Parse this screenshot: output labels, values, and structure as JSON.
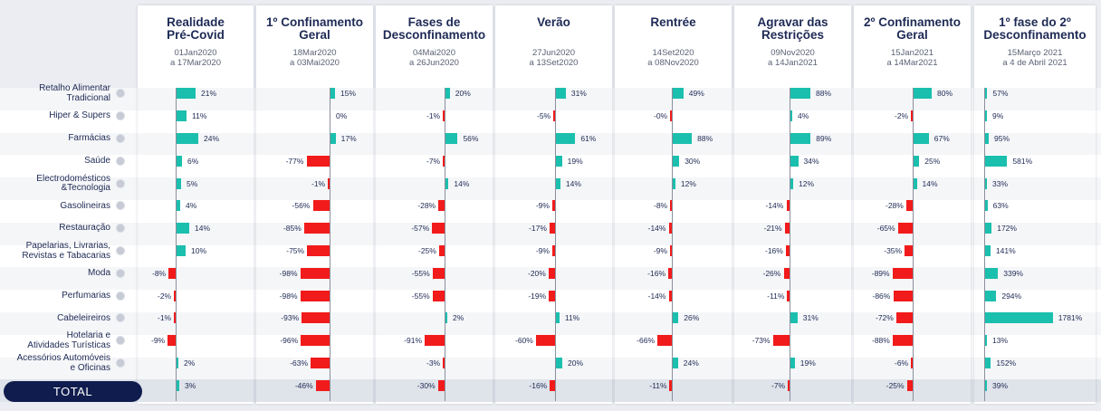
{
  "total_label": "TOTAL",
  "colors": {
    "positive": "#1bbfae",
    "negative": "#f21b1b",
    "navy": "#1e2a55"
  },
  "chart_data": {
    "type": "bar",
    "orientation": "horizontal",
    "categories": [
      "Retalho Alimentar\nTradicional",
      "Hiper & Supers",
      "Farmácias",
      "Saúde",
      "Electrodomésticos\n&Tecnologia",
      "Gasolineiras",
      "Restauração",
      "Papelarias, Livrarias,\nRevistas e Tabacarias",
      "Moda",
      "Perfumarias",
      "Cabeleireiros",
      "Hotelaria e\nAtividades Turísticas",
      "Acessórios Automóveis\ne Oficinas",
      "TOTAL"
    ],
    "series": [
      {
        "name": "Realidade\nPré-Covid",
        "dates": "01Jan2020\na 17Mar2020",
        "values": [
          21,
          11,
          24,
          6,
          5,
          4,
          14,
          10,
          -8,
          -2,
          -1,
          -9,
          2,
          3
        ],
        "labels": [
          "21%",
          "11%",
          "24%",
          "6%",
          "5%",
          "4%",
          "14%",
          "10%",
          "-8%",
          "-2%",
          "-1%",
          "-9%",
          "2%",
          "3%"
        ]
      },
      {
        "name": "1º Confinamento\nGeral",
        "dates": "18Mar2020\na 03Mai2020",
        "values": [
          15,
          0,
          17,
          -77,
          -1,
          -56,
          -85,
          -75,
          -98,
          -98,
          -93,
          -96,
          -63,
          -46
        ],
        "labels": [
          "15%",
          "0%",
          "17%",
          "-77%",
          "-1%",
          "-56%",
          "-85%",
          "-75%",
          "-98%",
          "-98%",
          "-93%",
          "-96%",
          "-63%",
          "-46%"
        ]
      },
      {
        "name": "Fases de\nDesconfinamento",
        "dates": "04Mai2020\na 26Jun2020",
        "values": [
          20,
          -1,
          56,
          -7,
          14,
          -28,
          -57,
          -25,
          -55,
          -55,
          2,
          -91,
          -3,
          -30
        ],
        "labels": [
          "20%",
          "-1%",
          "56%",
          "-7%",
          "14%",
          "-28%",
          "-57%",
          "-25%",
          "-55%",
          "-55%",
          "2%",
          "-91%",
          "-3%",
          "-30%"
        ]
      },
      {
        "name": "Verão",
        "dates": "27Jun2020\na 13Set2020",
        "values": [
          31,
          -5,
          61,
          19,
          14,
          -9,
          -17,
          -9,
          -20,
          -19,
          11,
          -60,
          20,
          -16
        ],
        "labels": [
          "31%",
          "-5%",
          "61%",
          "19%",
          "14%",
          "-9%",
          "-17%",
          "-9%",
          "-20%",
          "-19%",
          "11%",
          "-60%",
          "20%",
          "-16%"
        ]
      },
      {
        "name": "Rentrée",
        "dates": "14Set2020\na 08Nov2020",
        "values": [
          49,
          -0.3,
          88,
          30,
          12,
          -8,
          -14,
          -9,
          -16,
          -14,
          26,
          -66,
          24,
          -11
        ],
        "labels": [
          "49%",
          "-0%",
          "88%",
          "30%",
          "12%",
          "-8%",
          "-14%",
          "-9%",
          "-16%",
          "-14%",
          "26%",
          "-66%",
          "24%",
          "-11%"
        ]
      },
      {
        "name": "Agravar das\nRestrições",
        "dates": "09Nov2020\na 14Jan2021",
        "values": [
          88,
          4,
          89,
          34,
          12,
          -14,
          -21,
          -16,
          -26,
          -11,
          31,
          -73,
          19,
          -7
        ],
        "labels": [
          "88%",
          "4%",
          "89%",
          "34%",
          "12%",
          "-14%",
          "-21%",
          "-16%",
          "-26%",
          "-11%",
          "31%",
          "-73%",
          "19%",
          "-7%"
        ]
      },
      {
        "name": "2º Confinamento\nGeral",
        "dates": "15Jan2021\na 14Mar2021",
        "values": [
          80,
          -2,
          67,
          25,
          14,
          -28,
          -65,
          -35,
          -89,
          -86,
          -72,
          -88,
          -6,
          -25
        ],
        "labels": [
          "80%",
          "-2%",
          "67%",
          "25%",
          "14%",
          "-28%",
          "-65%",
          "-35%",
          "-89%",
          "-86%",
          "-72%",
          "-88%",
          "-6%",
          "-25%"
        ]
      },
      {
        "name": "1º fase do 2º\nDesconfinamento",
        "dates": "15Março 2021\na 4 de Abril 2021",
        "values": [
          57,
          9,
          95,
          581,
          33,
          63,
          172,
          141,
          339,
          294,
          1781,
          13,
          152,
          39
        ],
        "labels": [
          "57%",
          "9%",
          "95%",
          "581%",
          "33%",
          "63%",
          "172%",
          "141%",
          "339%",
          "294%",
          "1781%",
          "13%",
          "152%",
          "39%"
        ]
      }
    ]
  }
}
